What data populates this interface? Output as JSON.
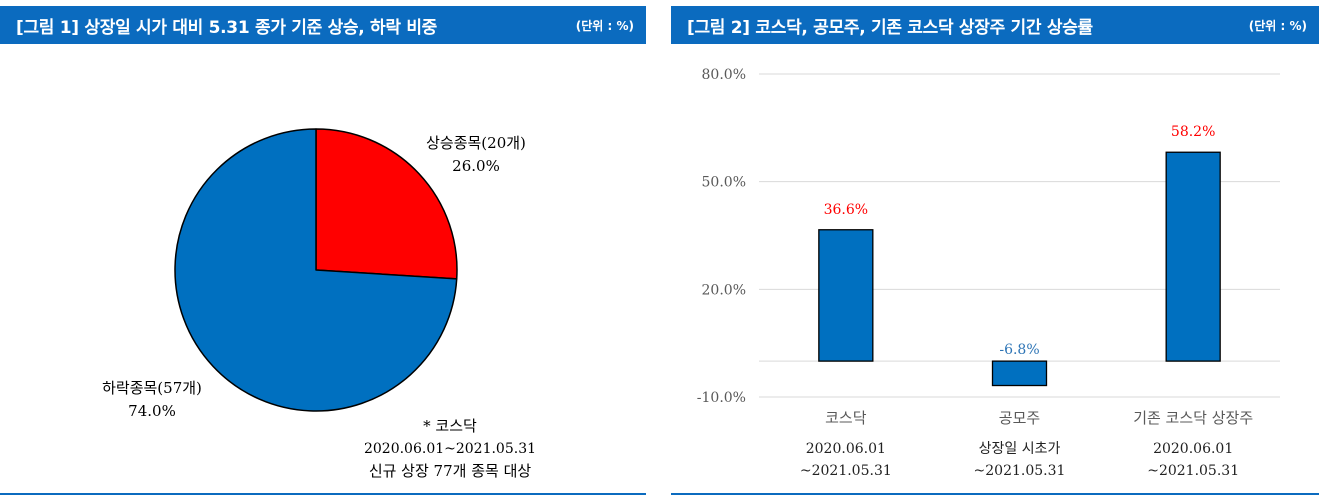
{
  "figure1": {
    "title": "[그림 1] 상장일 시가 대비 5.31 종가 기준 상승, 하락 비중",
    "unit": "(단위 : %)",
    "note_title": "* 코스닥",
    "note_line1": "2020.06.01~2021.05.31",
    "note_line2": "신규 상장 77개 종목 대상",
    "chart_data": {
      "type": "pie",
      "slices": [
        {
          "label": "상승종목(20개)",
          "value": 26.0,
          "value_label": "26.0%",
          "color": "#ff0000"
        },
        {
          "label": "하락종목(57개)",
          "value": 74.0,
          "value_label": "74.0%",
          "color": "#0070c0"
        }
      ]
    }
  },
  "figure2": {
    "title": "[그림 2] 코스닥, 공모주, 기존 코스닥 상장주 기간 상승률",
    "unit": "(단위 : %)",
    "chart_data": {
      "type": "bar",
      "categories": [
        "코스닥",
        "공모주",
        "기존 코스닥 상장주"
      ],
      "sublabels": [
        [
          "2020.06.01",
          "~2021.05.31"
        ],
        [
          "상장일 시초가",
          "~2021.05.31"
        ],
        [
          "2020.06.01",
          "~2021.05.31"
        ]
      ],
      "values": [
        36.6,
        -6.8,
        58.2
      ],
      "value_labels": [
        "36.6%",
        "-6.8%",
        "58.2%"
      ],
      "label_colors": [
        "#ff0000",
        "#2e75b6",
        "#ff0000"
      ],
      "bar_color": "#0070c0",
      "y_ticks": [
        {
          "value": 80,
          "label": "80.0%"
        },
        {
          "value": 50,
          "label": "50.0%"
        },
        {
          "value": 20,
          "label": "20.0%"
        },
        {
          "value": -10,
          "label": "-10.0%"
        }
      ],
      "ylim": [
        -10,
        80
      ],
      "grid": true
    }
  }
}
